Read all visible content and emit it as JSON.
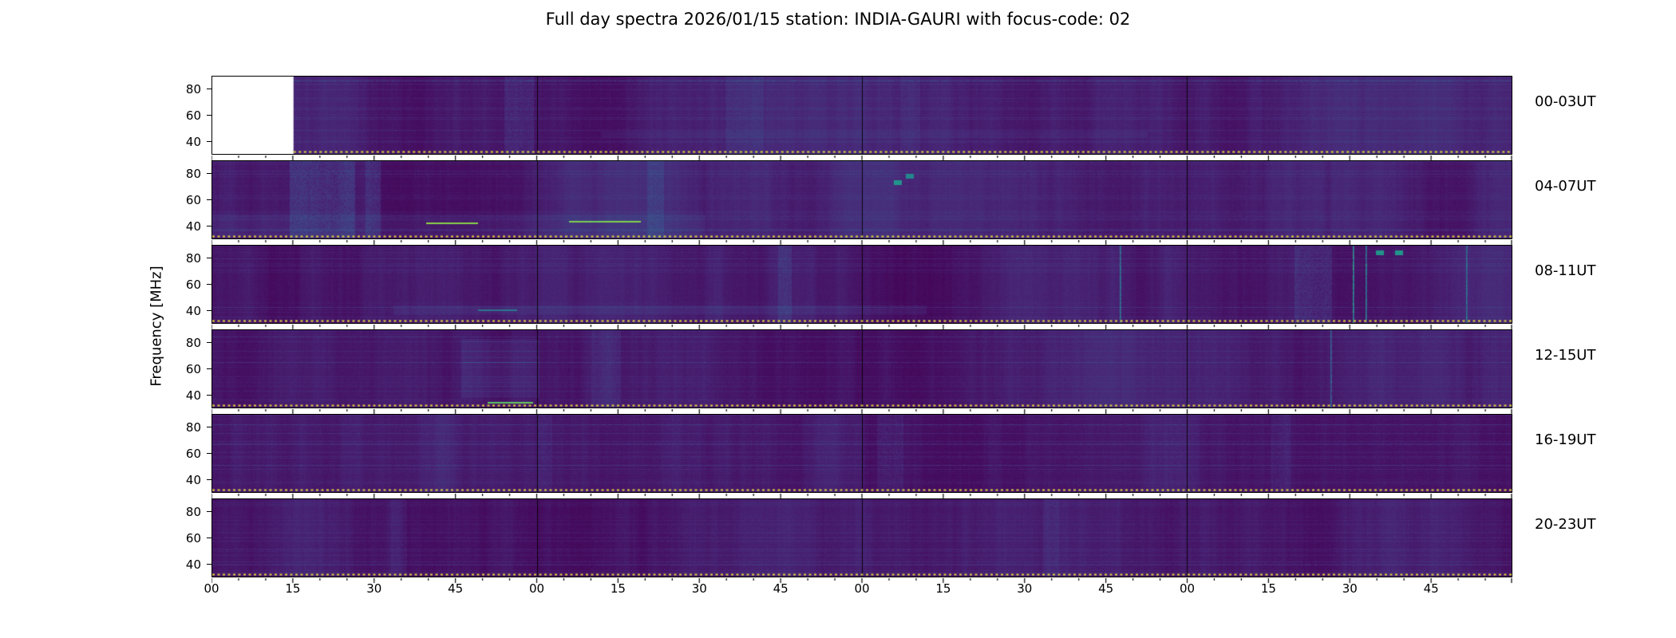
{
  "title": "Full day spectra 2026/01/15 station: INDIA-GAURI with focus-code: 02",
  "axis": {
    "ylabel": "Frequency [MHz]",
    "yticks": [
      "80",
      "60",
      "40"
    ],
    "xticks": [
      "00",
      "15",
      "30",
      "45",
      "00",
      "15",
      "30",
      "45",
      "00",
      "15",
      "30",
      "45",
      "00",
      "15",
      "30",
      "45"
    ]
  },
  "panels": [
    {
      "label": "00-03UT"
    },
    {
      "label": "04-07UT"
    },
    {
      "label": "08-11UT"
    },
    {
      "label": "12-15UT"
    },
    {
      "label": "16-19UT"
    },
    {
      "label": "20-23UT"
    }
  ],
  "colors": {
    "background": "#ffffff",
    "text": "#000000",
    "frame": "#000000",
    "spectrogram_base": "#440154",
    "dotted_line": "#ded73c"
  },
  "chart_data": {
    "type": "heatmap",
    "subtype": "radio-spectrogram",
    "title": "Full day spectra 2026/01/15 station: INDIA-GAURI with focus-code: 02",
    "date": "2026/01/15",
    "station": "INDIA-GAURI",
    "focus_code": "02",
    "ylabel": "Frequency [MHz]",
    "y_range_mhz": [
      30,
      90
    ],
    "yticks_mhz": [
      80,
      60,
      40
    ],
    "hours_per_row": 4,
    "x_tick_minutes": [
      "00",
      "15",
      "30",
      "45"
    ],
    "colormap": "viridis",
    "legend": "none",
    "grid": false,
    "rows": [
      {
        "label": "00-03UT",
        "utc_hours": [
          0,
          3
        ],
        "base": 0.055,
        "no_data_fraction": [
          0,
          0.0625
        ],
        "features": [
          {
            "type": "vband",
            "x": 0.225,
            "x2": 0.248,
            "v": 0.045
          },
          {
            "type": "vband",
            "x": 0.395,
            "x2": 0.425,
            "v": 0.035
          },
          {
            "type": "hband",
            "x": 0.3,
            "x2": 0.72,
            "y": 0.72,
            "y2": 0.8,
            "v": 0.025
          },
          {
            "type": "vband",
            "x": 0.53,
            "x2": 0.545,
            "v": 0.03
          }
        ]
      },
      {
        "label": "04-07UT",
        "utc_hours": [
          4,
          7
        ],
        "base": 0.065,
        "features": [
          {
            "type": "vband",
            "x": 0.06,
            "x2": 0.11,
            "v": 0.075
          },
          {
            "type": "vband",
            "x": 0.118,
            "x2": 0.13,
            "v": 0.06
          },
          {
            "type": "vband",
            "x": 0.335,
            "x2": 0.348,
            "v": 0.05
          },
          {
            "type": "spot",
            "x": 0.528,
            "y": 0.28,
            "v": 0.4
          },
          {
            "type": "spot",
            "x": 0.537,
            "y": 0.2,
            "v": 0.35
          },
          {
            "type": "hband",
            "x": 0.0,
            "x2": 0.38,
            "y": 0.7,
            "y2": 0.97,
            "v": 0.03
          },
          {
            "type": "hline",
            "x": 0.165,
            "x2": 0.205,
            "y": 0.8,
            "v": 0.75
          },
          {
            "type": "hline",
            "x": 0.275,
            "x2": 0.33,
            "y": 0.78,
            "v": 0.65
          }
        ]
      },
      {
        "label": "08-11UT",
        "utc_hours": [
          8,
          11
        ],
        "base": 0.058,
        "features": [
          {
            "type": "vline",
            "x": 0.699,
            "v": 0.3
          },
          {
            "type": "vband",
            "x": 0.833,
            "x2": 0.862,
            "v": 0.06
          },
          {
            "type": "vline",
            "x": 0.878,
            "v": 0.45
          },
          {
            "type": "vline",
            "x": 0.888,
            "v": 0.35
          },
          {
            "type": "spot",
            "x": 0.899,
            "y": 0.1,
            "v": 0.45
          },
          {
            "type": "spot",
            "x": 0.914,
            "y": 0.1,
            "v": 0.45
          },
          {
            "type": "vline",
            "x": 0.965,
            "v": 0.25
          },
          {
            "type": "hband",
            "x": 0.14,
            "x2": 0.55,
            "y": 0.78,
            "y2": 0.9,
            "v": 0.035
          },
          {
            "type": "hline",
            "x": 0.205,
            "x2": 0.235,
            "y": 0.83,
            "v": 0.3
          },
          {
            "type": "vband",
            "x": 0.436,
            "x2": 0.446,
            "v": 0.05
          }
        ]
      },
      {
        "label": "12-15UT",
        "utc_hours": [
          12,
          15
        ],
        "base": 0.058,
        "features": [
          {
            "type": "patch",
            "x": 0.192,
            "x2": 0.252,
            "y": 0.12,
            "y2": 0.88,
            "v": 0.1,
            "stripe": true
          },
          {
            "type": "hline",
            "x": 0.212,
            "x2": 0.247,
            "y": 0.935,
            "v": 0.7
          },
          {
            "type": "vline",
            "x": 0.861,
            "v": 0.22
          },
          {
            "type": "vband",
            "x": 0.292,
            "x2": 0.315,
            "v": 0.03
          }
        ]
      },
      {
        "label": "16-19UT",
        "utc_hours": [
          16,
          19
        ],
        "base": 0.055,
        "features": [
          {
            "type": "vband",
            "x": 0.512,
            "x2": 0.532,
            "v": 0.04
          },
          {
            "type": "vband",
            "x": 0.25,
            "x2": 0.262,
            "v": 0.03
          },
          {
            "type": "vband",
            "x": 0.815,
            "x2": 0.83,
            "v": 0.03
          }
        ]
      },
      {
        "label": "20-23UT",
        "utc_hours": [
          20,
          23
        ],
        "base": 0.052,
        "features": [
          {
            "type": "vband",
            "x": 0.138,
            "x2": 0.15,
            "v": 0.028
          },
          {
            "type": "vband",
            "x": 0.64,
            "x2": 0.652,
            "v": 0.028
          }
        ]
      }
    ]
  }
}
